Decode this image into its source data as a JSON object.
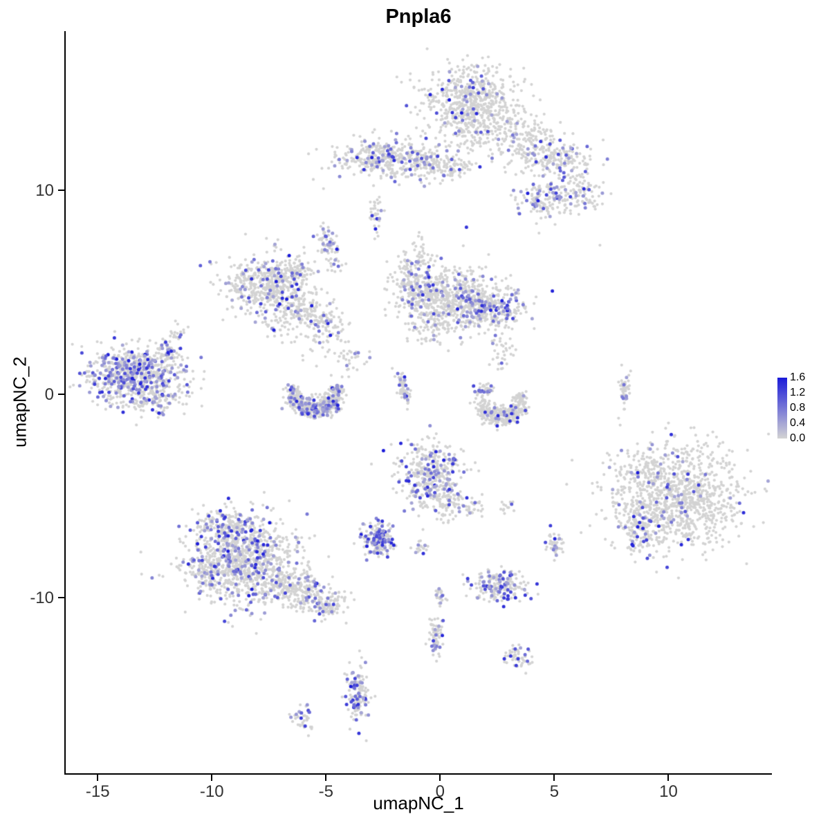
{
  "chart_data": {
    "type": "scatter",
    "title": "Pnpla6",
    "xlabel": "umapNC_1",
    "ylabel": "umapNC_2",
    "xlim": [
      -16.4,
      14.5
    ],
    "ylim": [
      -18.6,
      17.8
    ],
    "x_ticks": [
      -15,
      -10,
      -5,
      0,
      5,
      10
    ],
    "y_ticks": [
      -10,
      0,
      10
    ],
    "grid": false,
    "background": "#ffffff",
    "point_radius_px": {
      "base": 2.1,
      "expressing": 2.5
    },
    "legend": {
      "labels": [
        "1.6",
        "1.2",
        "0.8",
        "0.4",
        "0.0"
      ],
      "vmax": 1.6,
      "color_low": "#D3D3D3",
      "color_high": "#1A1AD9",
      "position": "right"
    },
    "note": "UMAP feature plot of Pnpla6 expression; clusters summarized as gaussian/arc densities: center (x,y), sd (sx,sy), n cells, f fraction expressing (colored).",
    "clusters": [
      {
        "x": 1.2,
        "y": 14.4,
        "sx": 1.0,
        "sy": 0.8,
        "n": 520,
        "f": 0.08
      },
      {
        "x": 2.9,
        "y": 13.1,
        "sx": 0.8,
        "sy": 0.9,
        "n": 170,
        "f": 0.06,
        "rot": 30
      },
      {
        "x": 1.1,
        "y": 12.6,
        "sx": 0.5,
        "sy": 0.7,
        "n": 60,
        "f": 0.05
      },
      {
        "x": 3.9,
        "y": 11.9,
        "sx": 0.6,
        "sy": 0.5,
        "n": 50,
        "f": 0.1
      },
      {
        "x": -2.4,
        "y": 11.6,
        "sx": 1.2,
        "sy": 0.5,
        "n": 330,
        "f": 0.18
      },
      {
        "x": -0.6,
        "y": 11.3,
        "sx": 0.5,
        "sy": 0.4,
        "n": 80,
        "f": 0.1
      },
      {
        "x": 0.6,
        "y": 11.1,
        "sx": 0.4,
        "sy": 0.3,
        "n": 40,
        "f": 0.08
      },
      {
        "x": 5.3,
        "y": 11.6,
        "sx": 0.75,
        "sy": 0.45,
        "n": 130,
        "f": 0.15
      },
      {
        "x": 4.6,
        "y": 9.6,
        "sx": 0.55,
        "sy": 0.5,
        "n": 110,
        "f": 0.3
      },
      {
        "x": 6.2,
        "y": 9.9,
        "sx": 0.5,
        "sy": 0.45,
        "n": 90,
        "f": 0.12
      },
      {
        "x": 4.4,
        "y": 12.6,
        "sx": 0.4,
        "sy": 0.4,
        "n": 30,
        "f": 0.05
      },
      {
        "x": -2.85,
        "y": 8.7,
        "sx": 0.15,
        "sy": 0.55,
        "n": 30,
        "f": 0.15
      },
      {
        "x": -4.9,
        "y": 7.2,
        "sx": 0.22,
        "sy": 0.55,
        "n": 55,
        "f": 0.35,
        "rot": 15
      },
      {
        "x": -7.6,
        "y": 5.4,
        "sx": 0.95,
        "sy": 0.7,
        "n": 430,
        "f": 0.13
      },
      {
        "x": -5.8,
        "y": 4.1,
        "sx": 0.9,
        "sy": 0.4,
        "n": 170,
        "f": 0.1,
        "rot": -25
      },
      {
        "x": -6.2,
        "y": 6.1,
        "sx": 0.35,
        "sy": 0.3,
        "n": 50,
        "f": 0.1
      },
      {
        "x": -6.9,
        "y": 3.4,
        "sx": 0.5,
        "sy": 0.5,
        "n": 40,
        "f": 0.05
      },
      {
        "x": -5.2,
        "y": 2.6,
        "sx": 0.5,
        "sy": 0.6,
        "n": 50,
        "f": 0.08
      },
      {
        "x": 0.4,
        "y": 4.7,
        "sx": 1.1,
        "sy": 0.75,
        "n": 520,
        "f": 0.12
      },
      {
        "x": 2.2,
        "y": 4.2,
        "sx": 0.75,
        "sy": 0.5,
        "n": 230,
        "f": 0.3
      },
      {
        "x": -1.2,
        "y": 5.5,
        "sx": 0.5,
        "sy": 0.6,
        "n": 120,
        "f": 0.15
      },
      {
        "x": -0.3,
        "y": 3.3,
        "sx": 0.6,
        "sy": 0.4,
        "n": 60,
        "f": 0.1
      },
      {
        "x": -0.9,
        "y": 6.9,
        "sx": 0.3,
        "sy": 0.6,
        "n": 30,
        "f": 0.1
      },
      {
        "x": -13.4,
        "y": 0.9,
        "sx": 1.05,
        "sy": 0.7,
        "n": 520,
        "f": 0.38
      },
      {
        "x": -11.9,
        "y": 2.2,
        "sx": 0.3,
        "sy": 0.55,
        "n": 60,
        "f": 0.25,
        "rot": -20
      },
      {
        "x": -12.6,
        "y": -0.3,
        "sx": 0.7,
        "sy": 0.3,
        "n": 70,
        "f": 0.1
      },
      {
        "type": "arc",
        "x": -5.5,
        "y": 0.1,
        "r": 0.95,
        "a0": -200,
        "a1": 20,
        "w": 0.2,
        "n": 300,
        "f": 0.22
      },
      {
        "x": -5.5,
        "y": -0.55,
        "sx": 0.5,
        "sy": 0.22,
        "n": 120,
        "f": 0.25
      },
      {
        "x": -1.6,
        "y": 0.3,
        "sx": 0.12,
        "sy": 0.5,
        "n": 55,
        "f": 0.2,
        "rot": 10
      },
      {
        "type": "arc",
        "x": 2.7,
        "y": -0.4,
        "r": 0.85,
        "a0": -190,
        "a1": 30,
        "w": 0.2,
        "n": 220,
        "f": 0.07
      },
      {
        "x": 2.75,
        "y": -0.9,
        "sx": 0.45,
        "sy": 0.2,
        "n": 90,
        "f": 0.08
      },
      {
        "x": 1.9,
        "y": 0.2,
        "sx": 0.2,
        "sy": 0.2,
        "n": 30,
        "f": 0.4
      },
      {
        "x": 8.1,
        "y": 0.2,
        "sx": 0.13,
        "sy": 0.5,
        "n": 40,
        "f": 0.15
      },
      {
        "x": -0.4,
        "y": -4.0,
        "sx": 0.7,
        "sy": 0.85,
        "n": 300,
        "f": 0.28
      },
      {
        "x": 0.3,
        "y": -5.4,
        "sx": 0.4,
        "sy": 0.4,
        "n": 60,
        "f": 0.1
      },
      {
        "x": 1.4,
        "y": -5.6,
        "sx": 0.3,
        "sy": 0.3,
        "n": 25,
        "f": 0.1
      },
      {
        "x": 2.9,
        "y": -5.6,
        "sx": 0.2,
        "sy": 0.2,
        "n": 12,
        "f": 0.1
      },
      {
        "x": 10.4,
        "y": -5.1,
        "sx": 1.5,
        "sy": 1.25,
        "n": 950,
        "f": 0.06
      },
      {
        "x": 8.8,
        "y": -6.6,
        "sx": 0.5,
        "sy": 0.6,
        "n": 120,
        "f": 0.15
      },
      {
        "x": 9.7,
        "y": -3.3,
        "sx": 0.8,
        "sy": 0.4,
        "n": 60,
        "f": 0.05
      },
      {
        "x": -8.6,
        "y": -8.2,
        "sx": 1.25,
        "sy": 1.05,
        "n": 820,
        "f": 0.2
      },
      {
        "x": -6.3,
        "y": -9.6,
        "sx": 1.0,
        "sy": 0.45,
        "n": 240,
        "f": 0.12,
        "rot": -18
      },
      {
        "x": -9.3,
        "y": -6.4,
        "sx": 0.6,
        "sy": 0.45,
        "n": 130,
        "f": 0.25
      },
      {
        "x": -10.3,
        "y": -8.8,
        "sx": 0.4,
        "sy": 0.5,
        "n": 60,
        "f": 0.1
      },
      {
        "x": -4.9,
        "y": -10.4,
        "sx": 0.35,
        "sy": 0.3,
        "n": 60,
        "f": 0.15
      },
      {
        "x": -2.7,
        "y": -7.1,
        "sx": 0.35,
        "sy": 0.4,
        "n": 130,
        "f": 0.5
      },
      {
        "x": -0.9,
        "y": -7.6,
        "sx": 0.15,
        "sy": 0.2,
        "n": 14,
        "f": 0.3
      },
      {
        "x": 5.0,
        "y": -7.4,
        "sx": 0.18,
        "sy": 0.35,
        "n": 35,
        "f": 0.25
      },
      {
        "x": 2.6,
        "y": -9.4,
        "sx": 0.6,
        "sy": 0.35,
        "n": 140,
        "f": 0.4
      },
      {
        "x": 0.0,
        "y": -9.9,
        "sx": 0.15,
        "sy": 0.25,
        "n": 18,
        "f": 0.25
      },
      {
        "x": -0.2,
        "y": -11.9,
        "sx": 0.15,
        "sy": 0.6,
        "n": 55,
        "f": 0.22
      },
      {
        "x": 3.4,
        "y": -12.9,
        "sx": 0.3,
        "sy": 0.3,
        "n": 45,
        "f": 0.2
      },
      {
        "x": -3.6,
        "y": -14.6,
        "sx": 0.22,
        "sy": 0.75,
        "n": 110,
        "f": 0.35
      },
      {
        "x": -6.1,
        "y": -15.9,
        "sx": 0.22,
        "sy": 0.3,
        "n": 30,
        "f": 0.3
      },
      {
        "x": -4.0,
        "y": 1.7,
        "sx": 0.4,
        "sy": 0.4,
        "n": 25,
        "f": 0.1
      },
      {
        "x": 2.7,
        "y": 2.0,
        "sx": 0.25,
        "sy": 0.6,
        "n": 30,
        "f": 0.05
      }
    ],
    "singles": [
      {
        "x": -10.5,
        "y": 6.3,
        "v": 1.0
      },
      {
        "x": 7.0,
        "y": 7.3,
        "v": 0.0
      }
    ]
  }
}
